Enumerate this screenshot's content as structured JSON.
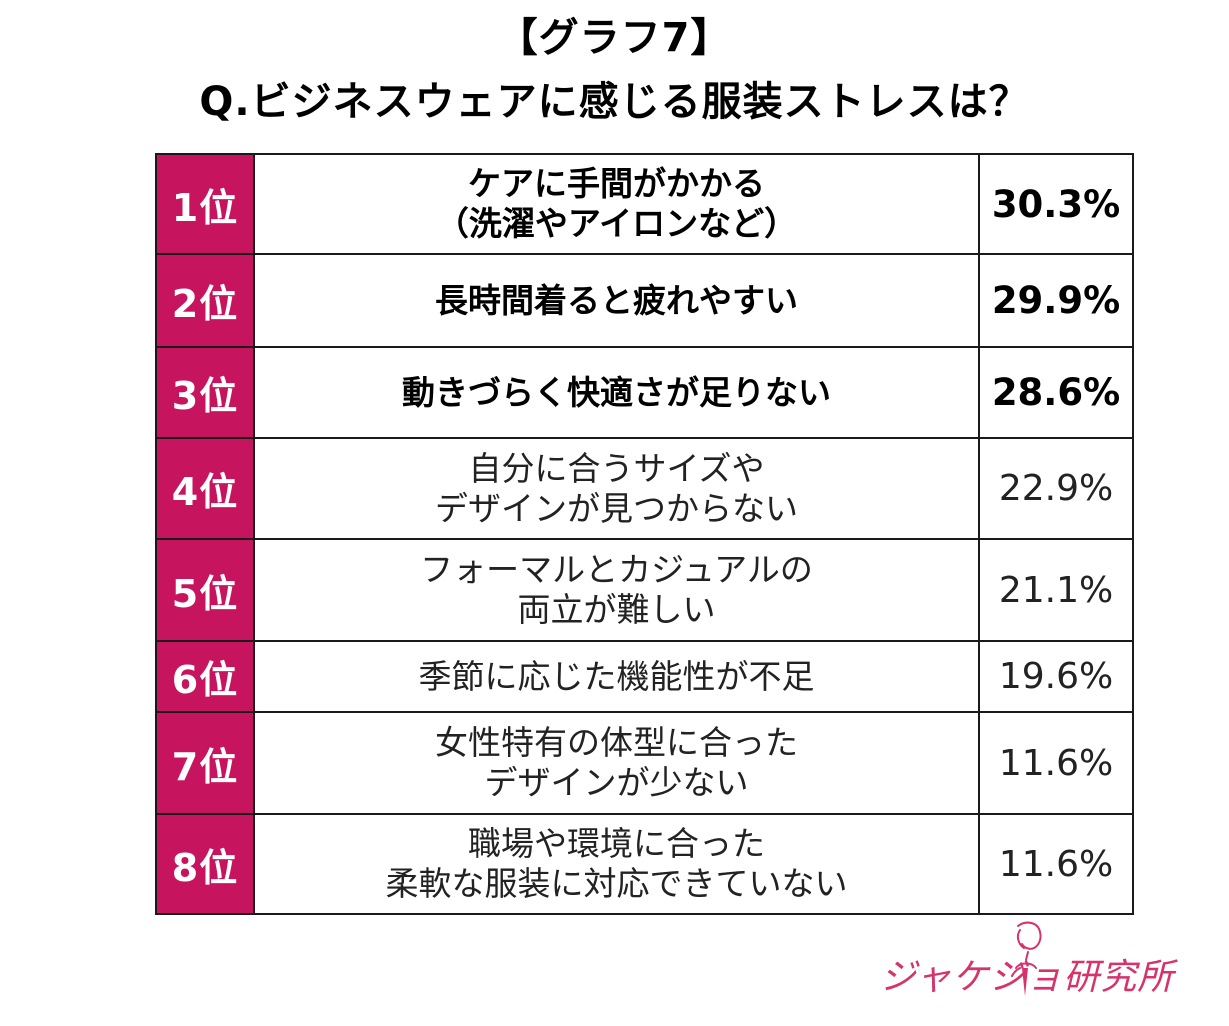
{
  "title": {
    "line1": "【グラフ7】",
    "line2": "Q.ビジネスウェアに感じる服装ストレスは？"
  },
  "chart_data": {
    "type": "table",
    "columns": [
      "rank",
      "item",
      "percent"
    ],
    "rows": [
      {
        "rank": "1位",
        "item_lines": [
          "ケアに手間がかかる",
          "（洗濯やアイロンなど）"
        ],
        "percent": "30.3%",
        "value": 30.3,
        "emphasis": true
      },
      {
        "rank": "2位",
        "item_lines": [
          "長時間着ると疲れやすい"
        ],
        "percent": "29.9%",
        "value": 29.9,
        "emphasis": true
      },
      {
        "rank": "3位",
        "item_lines": [
          "動きづらく快適さが足りない"
        ],
        "percent": "28.6%",
        "value": 28.6,
        "emphasis": true
      },
      {
        "rank": "4位",
        "item_lines": [
          "自分に合うサイズや",
          "デザインが見つからない"
        ],
        "percent": "22.9%",
        "value": 22.9,
        "emphasis": false
      },
      {
        "rank": "5位",
        "item_lines": [
          "フォーマルとカジュアルの",
          "両立が難しい"
        ],
        "percent": "21.1%",
        "value": 21.1,
        "emphasis": false
      },
      {
        "rank": "6位",
        "item_lines": [
          "季節に応じた機能性が不足"
        ],
        "percent": "19.6%",
        "value": 19.6,
        "emphasis": false
      },
      {
        "rank": "7位",
        "item_lines": [
          "女性特有の体型に合った",
          "デザインが少ない"
        ],
        "percent": "11.6%",
        "value": 11.6,
        "emphasis": false
      },
      {
        "rank": "8位",
        "item_lines": [
          "職場や環境に合った",
          "柔軟な服装に対応できていない"
        ],
        "percent": "11.6%",
        "value": 11.6,
        "emphasis": false
      }
    ]
  },
  "logo": {
    "text": "ジャケジョ研究所"
  },
  "colors": {
    "rank_bg": "#c7145f",
    "rank_text": "#ffffff",
    "logo": "#d6336c",
    "border": "#1a1a1a"
  }
}
